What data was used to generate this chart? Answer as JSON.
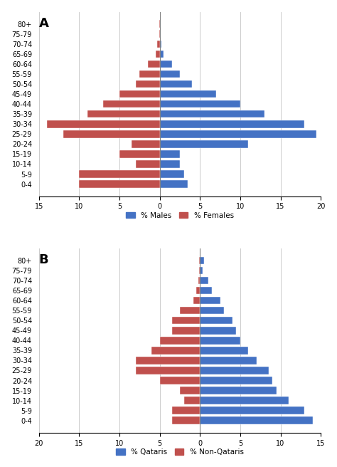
{
  "age_groups": [
    "0-4",
    "5-9",
    "10-14",
    "15-19",
    "20-24",
    "25-29",
    "30-34",
    "35-39",
    "40-44",
    "45-49",
    "50-54",
    "55-59",
    "60-64",
    "65-69",
    "70-74",
    "75-79",
    "80+"
  ],
  "chartA": {
    "title": "A",
    "males": [
      3.5,
      3.0,
      2.5,
      2.5,
      11.0,
      19.5,
      18.0,
      13.0,
      10.0,
      7.0,
      4.0,
      2.5,
      1.5,
      0.5,
      0.2,
      0.1,
      0.1
    ],
    "females": [
      10.0,
      10.0,
      3.0,
      5.0,
      3.5,
      12.0,
      14.0,
      9.0,
      7.0,
      5.0,
      3.0,
      2.5,
      1.5,
      0.5,
      0.3,
      0.1,
      0.1
    ],
    "male_color": "#4472C4",
    "female_color": "#C0504D",
    "xlim_left": 15,
    "xlim_right": 20,
    "xticks": [
      -15,
      -10,
      -5,
      0,
      5,
      10,
      15,
      20
    ],
    "xticklabels": [
      "15",
      "10",
      "5",
      "0",
      "5",
      "10",
      "15",
      "20"
    ],
    "legend_blue": "% Males",
    "legend_red": "% Females"
  },
  "chartB": {
    "title": "B",
    "qataris": [
      14.0,
      13.0,
      11.0,
      9.5,
      9.0,
      8.5,
      7.0,
      6.0,
      5.0,
      4.5,
      4.0,
      3.0,
      2.5,
      1.5,
      1.0,
      0.3,
      0.5
    ],
    "nonqataris": [
      3.5,
      3.5,
      2.0,
      2.5,
      5.0,
      8.0,
      8.0,
      6.0,
      5.0,
      3.5,
      3.5,
      2.5,
      0.8,
      0.5,
      0.2,
      0.1,
      0.1
    ],
    "qatari_color": "#4472C4",
    "nonqatari_color": "#C0504D",
    "xlim_left": 20,
    "xlim_right": 15,
    "xticks": [
      -20,
      -15,
      -10,
      -5,
      0,
      5,
      10,
      15
    ],
    "xticklabels": [
      "20",
      "15",
      "10",
      "5",
      "0",
      "5",
      "10",
      "15"
    ],
    "legend_blue": "% Qataris",
    "legend_red": "% Non-Qataris"
  },
  "bar_height": 0.75,
  "background_color": "#ffffff",
  "grid_color": "#cccccc"
}
